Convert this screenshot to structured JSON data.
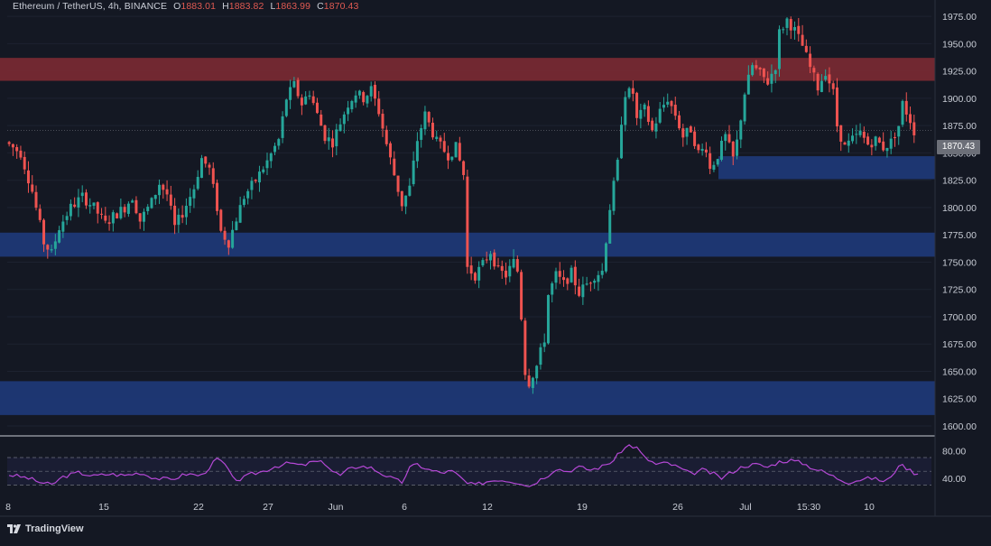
{
  "header": {
    "symbol": "Ethereum / TetherUS, 4h, BINANCE",
    "open_key": "O",
    "open": "1883.01",
    "high_key": "H",
    "high": "1883.82",
    "low_key": "L",
    "low": "1863.99",
    "close_key": "C",
    "close": "1870.43"
  },
  "brand": {
    "label": "TradingView"
  },
  "colors": {
    "background": "#141823",
    "up": "#26a69a",
    "down": "#ef5350",
    "rsi": "#b548d6",
    "resistance_zone": "#7b2a33",
    "support_zone": "#1e3a7a"
  },
  "chart_data": [
    {
      "type": "candlestick",
      "title": "",
      "ylim": [
        1600,
        1990
      ],
      "price_ticks": [
        "1975.00",
        "1950.00",
        "1925.00",
        "1900.00",
        "1875.00",
        "1850.00",
        "1825.00",
        "1800.00",
        "1775.00",
        "1750.00",
        "1725.00",
        "1700.00",
        "1675.00",
        "1650.00",
        "1625.00",
        "1600.00"
      ],
      "x_ticks": [
        "8",
        "15",
        "22",
        "27",
        "Jun",
        "6",
        "12",
        "19",
        "26",
        "Jul",
        "15:30",
        "10"
      ],
      "last_price": "1870.43",
      "zones": [
        {
          "kind": "resistance",
          "from": 1916,
          "to": 1937
        },
        {
          "kind": "support",
          "from": 1826,
          "to": 1847
        },
        {
          "kind": "support",
          "from": 1755,
          "to": 1777
        },
        {
          "kind": "support",
          "from": 1610,
          "to": 1641
        }
      ],
      "price_path": [
        [
          0,
          1860
        ],
        [
          4,
          1850
        ],
        [
          7,
          1815
        ],
        [
          10,
          1768
        ],
        [
          12,
          1758
        ],
        [
          14,
          1782
        ],
        [
          17,
          1800
        ],
        [
          20,
          1810
        ],
        [
          23,
          1800
        ],
        [
          26,
          1785
        ],
        [
          28,
          1792
        ],
        [
          31,
          1800
        ],
        [
          33,
          1810
        ],
        [
          35,
          1788
        ],
        [
          38,
          1805
        ],
        [
          40,
          1822
        ],
        [
          42,
          1812
        ],
        [
          44,
          1782
        ],
        [
          46,
          1795
        ],
        [
          49,
          1818
        ],
        [
          51,
          1845
        ],
        [
          53,
          1835
        ],
        [
          55,
          1800
        ],
        [
          56,
          1778
        ],
        [
          58,
          1768
        ],
        [
          60,
          1790
        ],
        [
          62,
          1810
        ],
        [
          65,
          1825
        ],
        [
          68,
          1842
        ],
        [
          71,
          1862
        ],
        [
          73,
          1900
        ],
        [
          75,
          1912
        ],
        [
          77,
          1895
        ],
        [
          79,
          1906
        ],
        [
          81,
          1885
        ],
        [
          83,
          1865
        ],
        [
          85,
          1860
        ],
        [
          87,
          1878
        ],
        [
          89,
          1895
        ],
        [
          91,
          1905
        ],
        [
          93,
          1900
        ],
        [
          95,
          1908
        ],
        [
          97,
          1888
        ],
        [
          99,
          1858
        ],
        [
          101,
          1830
        ],
        [
          103,
          1803
        ],
        [
          105,
          1818
        ],
        [
          107,
          1862
        ],
        [
          109,
          1885
        ],
        [
          112,
          1860
        ],
        [
          115,
          1848
        ],
        [
          117,
          1855
        ],
        [
          119,
          1830
        ],
        [
          120,
          1745
        ],
        [
          122,
          1738
        ],
        [
          124,
          1748
        ],
        [
          126,
          1760
        ],
        [
          128,
          1742
        ],
        [
          130,
          1738
        ],
        [
          132,
          1750
        ],
        [
          133,
          1742
        ],
        [
          134,
          1700
        ],
        [
          135,
          1650
        ],
        [
          136,
          1640
        ],
        [
          138,
          1655
        ],
        [
          140,
          1680
        ],
        [
          141,
          1720
        ],
        [
          143,
          1738
        ],
        [
          145,
          1730
        ],
        [
          147,
          1740
        ],
        [
          149,
          1722
        ],
        [
          151,
          1730
        ],
        [
          153,
          1738
        ],
        [
          155,
          1742
        ],
        [
          157,
          1800
        ],
        [
          159,
          1840
        ],
        [
          160,
          1880
        ],
        [
          161,
          1905
        ],
        [
          163,
          1905
        ],
        [
          164,
          1880
        ],
        [
          166,
          1890
        ],
        [
          168,
          1870
        ],
        [
          170,
          1888
        ],
        [
          172,
          1900
        ],
        [
          174,
          1885
        ],
        [
          176,
          1865
        ],
        [
          178,
          1872
        ],
        [
          180,
          1850
        ],
        [
          182,
          1855
        ],
        [
          183,
          1835
        ],
        [
          185,
          1848
        ],
        [
          187,
          1865
        ],
        [
          189,
          1845
        ],
        [
          190,
          1860
        ],
        [
          192,
          1905
        ],
        [
          194,
          1930
        ],
        [
          196,
          1922
        ],
        [
          198,
          1915
        ],
        [
          200,
          1930
        ],
        [
          201,
          1960
        ],
        [
          203,
          1972
        ],
        [
          205,
          1962
        ],
        [
          207,
          1948
        ],
        [
          209,
          1928
        ],
        [
          211,
          1910
        ],
        [
          213,
          1925
        ],
        [
          215,
          1905
        ],
        [
          216,
          1875
        ],
        [
          218,
          1855
        ],
        [
          220,
          1862
        ],
        [
          222,
          1868
        ],
        [
          224,
          1858
        ],
        [
          226,
          1862
        ],
        [
          228,
          1855
        ],
        [
          230,
          1860
        ],
        [
          232,
          1875
        ],
        [
          233,
          1895
        ],
        [
          235,
          1880
        ],
        [
          236,
          1870
        ]
      ]
    },
    {
      "type": "line",
      "title": "",
      "ylim": [
        20,
        95
      ],
      "y_ticks": [
        "80.00",
        "40.00"
      ],
      "bands": [
        70,
        50,
        30
      ],
      "series": [
        {
          "values_path": [
            [
              0,
              45
            ],
            [
              5,
              40
            ],
            [
              8,
              34
            ],
            [
              11,
              30
            ],
            [
              14,
              42
            ],
            [
              18,
              48
            ],
            [
              22,
              43
            ],
            [
              26,
              46
            ],
            [
              30,
              44
            ],
            [
              34,
              48
            ],
            [
              38,
              40
            ],
            [
              42,
              38
            ],
            [
              46,
              46
            ],
            [
              50,
              44
            ],
            [
              54,
              68
            ],
            [
              56,
              60
            ],
            [
              58,
              40
            ],
            [
              60,
              38
            ],
            [
              63,
              46
            ],
            [
              66,
              50
            ],
            [
              69,
              57
            ],
            [
              73,
              62
            ],
            [
              76,
              58
            ],
            [
              79,
              64
            ],
            [
              82,
              62
            ],
            [
              84,
              50
            ],
            [
              86,
              44
            ],
            [
              88,
              52
            ],
            [
              91,
              58
            ],
            [
              94,
              55
            ],
            [
              97,
              46
            ],
            [
              100,
              38
            ],
            [
              102,
              34
            ],
            [
              104,
              55
            ],
            [
              106,
              60
            ],
            [
              109,
              52
            ],
            [
              112,
              48
            ],
            [
              115,
              50
            ],
            [
              117,
              42
            ],
            [
              119,
              32
            ],
            [
              121,
              30
            ],
            [
              124,
              35
            ],
            [
              127,
              38
            ],
            [
              130,
              36
            ],
            [
              133,
              33
            ],
            [
              135,
              28
            ],
            [
              137,
              35
            ],
            [
              140,
              45
            ],
            [
              142,
              54
            ],
            [
              145,
              50
            ],
            [
              148,
              56
            ],
            [
              151,
              52
            ],
            [
              154,
              57
            ],
            [
              157,
              66
            ],
            [
              159,
              80
            ],
            [
              161,
              88
            ],
            [
              163,
              84
            ],
            [
              165,
              70
            ],
            [
              168,
              60
            ],
            [
              171,
              62
            ],
            [
              174,
              55
            ],
            [
              177,
              46
            ],
            [
              180,
              52
            ],
            [
              183,
              46
            ],
            [
              185,
              40
            ],
            [
              188,
              50
            ],
            [
              191,
              58
            ],
            [
              194,
              60
            ],
            [
              197,
              56
            ],
            [
              200,
              64
            ],
            [
              203,
              66
            ],
            [
              206,
              62
            ],
            [
              209,
              54
            ],
            [
              212,
              48
            ],
            [
              215,
              40
            ],
            [
              218,
              34
            ],
            [
              221,
              38
            ],
            [
              224,
              40
            ],
            [
              227,
              36
            ],
            [
              229,
              40
            ],
            [
              231,
              60
            ],
            [
              233,
              55
            ],
            [
              235,
              48
            ],
            [
              236,
              47
            ]
          ]
        }
      ]
    }
  ]
}
